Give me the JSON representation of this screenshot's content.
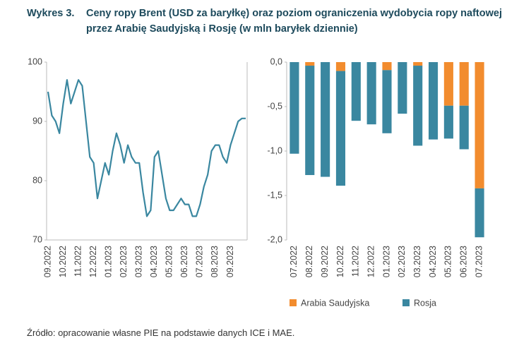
{
  "title": {
    "label": "Wykres 3.",
    "text": "Ceny ropy Brent (USD za baryłkę) oraz poziom ograniczenia wydobycia ropy naftowej przez Arabię Saudyjską i Rosję (w mln baryłek dziennie)"
  },
  "source": "Źródło: opracowanie własne PIE na podstawie danych ICE i MAE.",
  "chart_data": [
    {
      "type": "line",
      "color": "#3a87a0",
      "categories": [
        "09.2022",
        null,
        null,
        null,
        "10.2022",
        null,
        null,
        null,
        "11.2022",
        null,
        null,
        null,
        "12.2022",
        null,
        null,
        null,
        "01.2023",
        null,
        null,
        null,
        "02.2023",
        null,
        null,
        null,
        "03.2023",
        null,
        null,
        null,
        "04.2023",
        null,
        null,
        null,
        "05.2023",
        null,
        null,
        null,
        "06.2023",
        null,
        null,
        null,
        "07.2023",
        null,
        null,
        null,
        "08.2023",
        null,
        null,
        null,
        "09.2023",
        null,
        null,
        null,
        null
      ],
      "values": [
        95,
        91,
        90,
        88,
        93,
        97,
        93,
        95,
        97,
        96,
        90,
        84,
        83,
        77,
        80,
        83,
        81,
        85,
        88,
        86,
        83,
        86,
        84,
        83,
        83,
        78,
        74,
        75,
        84,
        85,
        81,
        77,
        75,
        75,
        76,
        77,
        76,
        76,
        74,
        74,
        76,
        79,
        81,
        85,
        86,
        86,
        84,
        83,
        86,
        88,
        90,
        90.5,
        90.5
      ],
      "ylim": [
        70,
        100
      ],
      "yticks": [
        70,
        80,
        90,
        100
      ]
    },
    {
      "type": "stacked-bar",
      "categories": [
        "07.2022",
        "08.2022",
        "09.2022",
        "10.2022",
        "11.2022",
        "12.2022",
        "01.2023",
        "02.2023",
        "03.2023",
        "04.2023",
        "05.2023",
        "06.2023",
        "07.2023"
      ],
      "series": [
        {
          "name": "Arabia Saudyjska",
          "color": "#f28c2e",
          "values": [
            0,
            -0.04,
            0,
            -0.1,
            0,
            0,
            -0.09,
            0,
            -0.04,
            0,
            -0.49,
            -0.49,
            -1.42
          ]
        },
        {
          "name": "Rosja",
          "color": "#3a87a0",
          "values": [
            -1.03,
            -1.23,
            -1.29,
            -1.29,
            -0.66,
            -0.7,
            -0.71,
            -0.58,
            -0.9,
            -0.87,
            -0.37,
            -0.49,
            -0.55
          ]
        }
      ],
      "ylim": [
        -2,
        0
      ],
      "yticks": [
        {
          "value": -2,
          "label": "-2,0"
        },
        {
          "value": -1.5,
          "label": "-1,5"
        },
        {
          "value": -1,
          "label": "-1,0"
        },
        {
          "value": -0.5,
          "label": "-0,5"
        },
        {
          "value": 0,
          "label": "0,0"
        }
      ]
    }
  ]
}
